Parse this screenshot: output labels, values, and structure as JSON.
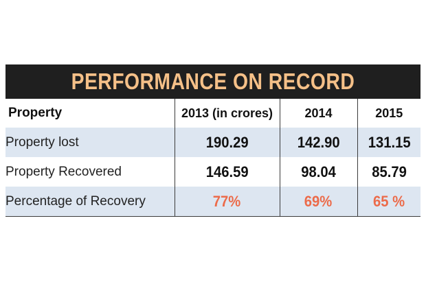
{
  "chart_data": {
    "type": "table",
    "title": "PERFORMANCE ON RECORD",
    "columns": [
      "Property",
      "2013 (in crores)",
      "2014",
      "2015"
    ],
    "rows": [
      {
        "label": "Property lost",
        "values": [
          "190.29",
          "142.90",
          "131.15"
        ]
      },
      {
        "label": "Property Recovered",
        "values": [
          "146.59",
          "98.04",
          "85.79"
        ]
      },
      {
        "label": "Percentage of Recovery",
        "values": [
          "77%",
          "69%",
          "65 %"
        ]
      }
    ]
  },
  "colors": {
    "title_bar": "#1f1f1f",
    "title_text": "#f5c088",
    "band": "#dde6f1",
    "percent_text": "#ec6b4a"
  }
}
